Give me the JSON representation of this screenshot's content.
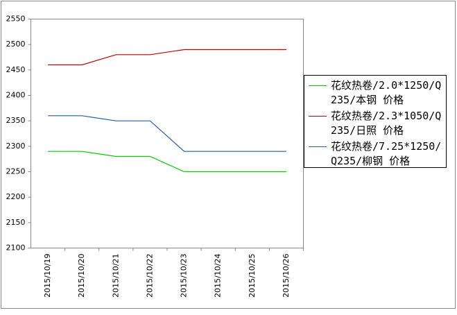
{
  "chart_data": {
    "type": "line",
    "categories": [
      "2015/10/19",
      "2015/10/20",
      "2015/10/21",
      "2015/10/22",
      "2015/10/23",
      "2015/10/24",
      "2015/10/25",
      "2015/10/26"
    ],
    "series": [
      {
        "name": "花纹热卷/2.0*1250/Q235/本钢 价格",
        "color": "#00cc00",
        "values": [
          2290,
          2290,
          2280,
          2280,
          2250,
          2250,
          2250,
          2250
        ]
      },
      {
        "name": "花纹热卷/2.3*1050/Q235/日照 价格",
        "color": "#c00000",
        "values": [
          2460,
          2460,
          2480,
          2480,
          2490,
          2490,
          2490,
          2490
        ]
      },
      {
        "name": "花纹热卷/7.25*1250/Q235/柳钢 价格",
        "color": "#1f5fa8",
        "values": [
          2360,
          2360,
          2350,
          2350,
          2290,
          2290,
          2290,
          2290
        ]
      }
    ],
    "ylim": [
      2100,
      2550
    ],
    "yticks": [
      2100,
      2150,
      2200,
      2250,
      2300,
      2350,
      2400,
      2450,
      2500,
      2550
    ],
    "grid": false,
    "legend": "right"
  }
}
